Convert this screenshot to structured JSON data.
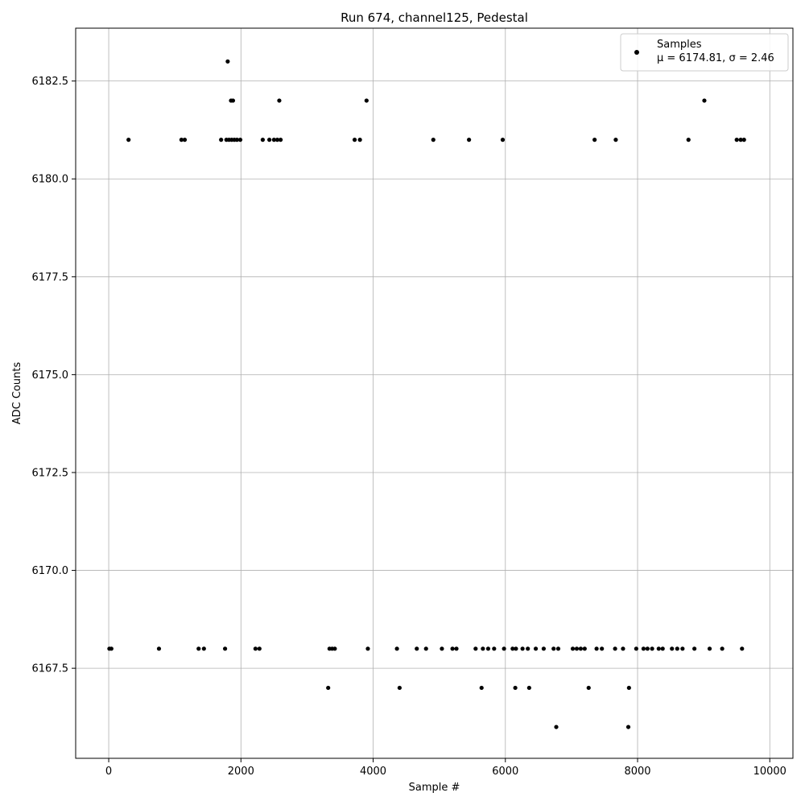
{
  "chart_data": {
    "type": "scatter",
    "title": "Run 674, channel125, Pedestal",
    "xlabel": "Sample #",
    "ylabel": "ADC Counts",
    "xlim": [
      -500,
      10350
    ],
    "ylim": [
      6165.2,
      6183.85
    ],
    "grid": true,
    "xticks": [
      0,
      2000,
      4000,
      6000,
      8000,
      10000
    ],
    "xtick_labels": [
      "0",
      "2000",
      "4000",
      "6000",
      "8000",
      "10000"
    ],
    "yticks": [
      6167.5,
      6170.0,
      6172.5,
      6175.0,
      6177.5,
      6180.0,
      6182.5
    ],
    "ytick_labels": [
      "6167.5",
      "6170.0",
      "6172.5",
      "6175.0",
      "6177.5",
      "6180.0",
      "6182.5"
    ],
    "legend": {
      "position": "top-right",
      "label": "Samples",
      "stats": "μ = 6174.81, σ = 2.46"
    },
    "series": [
      {
        "name": "Samples",
        "color": "#000000",
        "points": [
          [
            1800,
            6183
          ],
          [
            1850,
            6182
          ],
          [
            1880,
            6182
          ],
          [
            2580,
            6182
          ],
          [
            3900,
            6182
          ],
          [
            9010,
            6182
          ],
          [
            300,
            6181
          ],
          [
            1100,
            6181
          ],
          [
            1150,
            6181
          ],
          [
            1700,
            6181
          ],
          [
            1780,
            6181
          ],
          [
            1820,
            6181
          ],
          [
            1860,
            6181
          ],
          [
            1900,
            6181
          ],
          [
            1940,
            6181
          ],
          [
            1990,
            6181
          ],
          [
            2330,
            6181
          ],
          [
            2430,
            6181
          ],
          [
            2500,
            6181
          ],
          [
            2550,
            6181
          ],
          [
            2600,
            6181
          ],
          [
            3720,
            6181
          ],
          [
            3800,
            6181
          ],
          [
            4910,
            6181
          ],
          [
            5450,
            6181
          ],
          [
            5960,
            6181
          ],
          [
            7350,
            6181
          ],
          [
            7670,
            6181
          ],
          [
            8770,
            6181
          ],
          [
            9500,
            6181
          ],
          [
            9560,
            6181
          ],
          [
            9610,
            6181
          ],
          [
            3320,
            6167
          ],
          [
            4400,
            6167
          ],
          [
            5640,
            6167
          ],
          [
            6150,
            6167
          ],
          [
            6360,
            6167
          ],
          [
            7260,
            6167
          ],
          [
            7870,
            6167
          ],
          [
            6770,
            6166
          ],
          [
            7860,
            6166
          ],
          [
            10,
            6168
          ],
          [
            40,
            6168
          ],
          [
            760,
            6168
          ],
          [
            1360,
            6168
          ],
          [
            1440,
            6168
          ],
          [
            1760,
            6168
          ],
          [
            2220,
            6168
          ],
          [
            2280,
            6168
          ],
          [
            3340,
            6168
          ],
          [
            3380,
            6168
          ],
          [
            3420,
            6168
          ],
          [
            3920,
            6168
          ],
          [
            4360,
            6168
          ],
          [
            4660,
            6168
          ],
          [
            4800,
            6168
          ],
          [
            5040,
            6168
          ],
          [
            5200,
            6168
          ],
          [
            5260,
            6168
          ],
          [
            5550,
            6168
          ],
          [
            5660,
            6168
          ],
          [
            5740,
            6168
          ],
          [
            5830,
            6168
          ],
          [
            5980,
            6168
          ],
          [
            6110,
            6168
          ],
          [
            6160,
            6168
          ],
          [
            6260,
            6168
          ],
          [
            6340,
            6168
          ],
          [
            6460,
            6168
          ],
          [
            6580,
            6168
          ],
          [
            6730,
            6168
          ],
          [
            6800,
            6168
          ],
          [
            7020,
            6168
          ],
          [
            7080,
            6168
          ],
          [
            7140,
            6168
          ],
          [
            7200,
            6168
          ],
          [
            7380,
            6168
          ],
          [
            7460,
            6168
          ],
          [
            7660,
            6168
          ],
          [
            7780,
            6168
          ],
          [
            7980,
            6168
          ],
          [
            8090,
            6168
          ],
          [
            8150,
            6168
          ],
          [
            8220,
            6168
          ],
          [
            8320,
            6168
          ],
          [
            8380,
            6168
          ],
          [
            8520,
            6168
          ],
          [
            8600,
            6168
          ],
          [
            8680,
            6168
          ],
          [
            8860,
            6168
          ],
          [
            9090,
            6168
          ],
          [
            9280,
            6168
          ],
          [
            9580,
            6168
          ]
        ]
      }
    ]
  }
}
